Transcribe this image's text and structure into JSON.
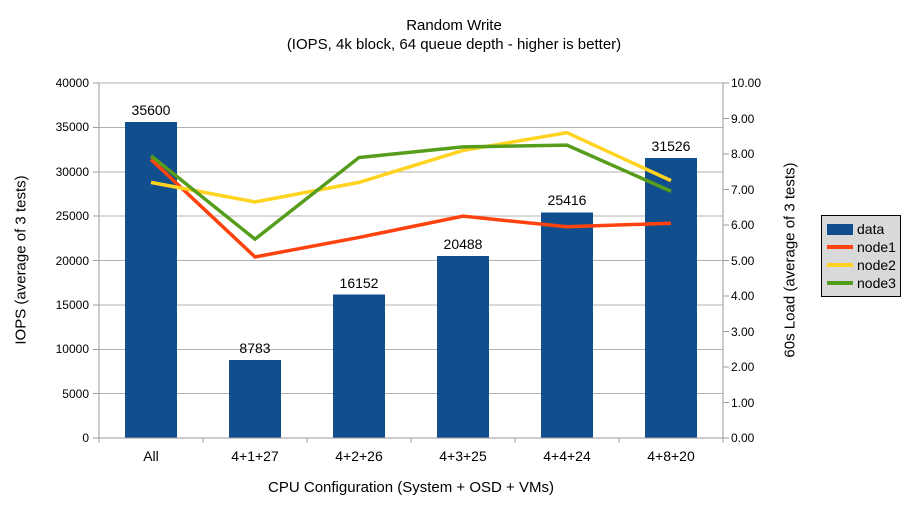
{
  "title": "Random Write",
  "subtitle": "(IOPS, 4k block, 64 queue depth - higher is better)",
  "chart_data": {
    "type": "combo-bar-line",
    "categories": [
      "All",
      "4+1+27",
      "4+2+26",
      "4+3+25",
      "4+4+24",
      "4+8+20"
    ],
    "series": [
      {
        "name": "data",
        "type": "bar",
        "axis": "left",
        "color": "#114e8d",
        "values": [
          35600,
          8783,
          16152,
          20488,
          25416,
          31526
        ],
        "show_data_labels": true
      },
      {
        "name": "node1",
        "type": "line",
        "axis": "right",
        "color": "#ff420e",
        "values": [
          7.85,
          5.1,
          5.65,
          6.25,
          5.95,
          6.05
        ]
      },
      {
        "name": "node2",
        "type": "line",
        "axis": "right",
        "color": "#ffd320",
        "values": [
          7.2,
          6.65,
          7.2,
          8.1,
          8.6,
          7.25
        ]
      },
      {
        "name": "node3",
        "type": "line",
        "axis": "right",
        "color": "#579d1c",
        "values": [
          7.95,
          5.6,
          7.9,
          8.2,
          8.25,
          6.95
        ]
      }
    ],
    "left_axis": {
      "title": "IOPS (average of 3 tests)",
      "min": 0,
      "max": 40000,
      "step": 5000
    },
    "right_axis": {
      "title": "60s Load (average of 3 tests)",
      "min": 0,
      "max": 10,
      "step": 1,
      "decimals": 2
    },
    "x_axis": {
      "title": "CPU Configuration (System + OSD + VMs)"
    },
    "legend": {
      "position": "right",
      "entries": [
        "data",
        "node1",
        "node2",
        "node3"
      ]
    },
    "grid": {
      "horizontal": true
    },
    "colors": {
      "grid": "#b3b3b3",
      "axis": "#9b9b9b",
      "text": "#000000",
      "legend_bg": "#d9d9d9",
      "legend_border": "#000000",
      "background": "#ffffff"
    }
  }
}
